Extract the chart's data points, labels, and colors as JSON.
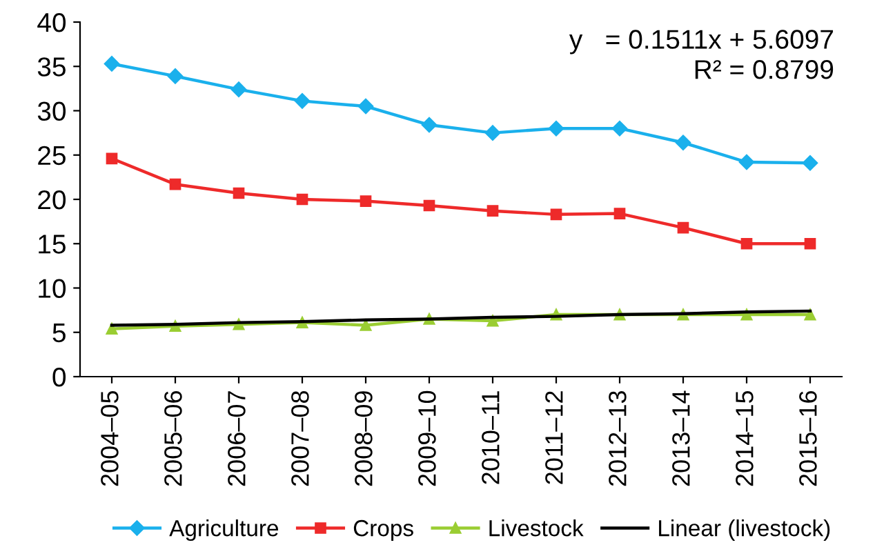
{
  "chart_data": {
    "type": "line",
    "categories": [
      "2004–05",
      "2005–06",
      "2006–07",
      "2007–08",
      "2008–09",
      "2009–10",
      "2010–11",
      "2011–12",
      "2012–13",
      "2013–14",
      "2014–15",
      "2015–16"
    ],
    "series": [
      {
        "name": "Agriculture",
        "color": "#1ab0ec",
        "marker": "diamond",
        "values": [
          35.3,
          33.9,
          32.4,
          31.1,
          30.5,
          28.4,
          27.5,
          28.0,
          28.0,
          26.4,
          24.2,
          24.1
        ]
      },
      {
        "name": "Crops",
        "color": "#ee2a2a",
        "marker": "square",
        "values": [
          24.6,
          21.7,
          20.7,
          20.0,
          19.8,
          19.3,
          18.7,
          18.3,
          18.4,
          16.8,
          15.0,
          15.0
        ]
      },
      {
        "name": "Livestock",
        "color": "#9acd32",
        "marker": "triangle",
        "values": [
          5.4,
          5.7,
          5.9,
          6.1,
          5.8,
          6.5,
          6.3,
          7.0,
          7.0,
          7.0,
          7.0,
          7.0
        ]
      },
      {
        "name": "Linear (livestock)",
        "color": "#000000",
        "marker": "none",
        "values": [
          5.8,
          5.9,
          6.1,
          6.2,
          6.4,
          6.5,
          6.7,
          6.8,
          7.0,
          7.1,
          7.3,
          7.4
        ]
      }
    ],
    "ylim": [
      0,
      40
    ],
    "yticks": [
      0,
      5,
      10,
      15,
      20,
      25,
      30,
      35,
      40
    ],
    "grid": false,
    "legend": "bottom",
    "line_style": "solid",
    "annotations": [
      "y   = 0.1511x + 5.6097",
      "R² = 0.8799"
    ]
  }
}
